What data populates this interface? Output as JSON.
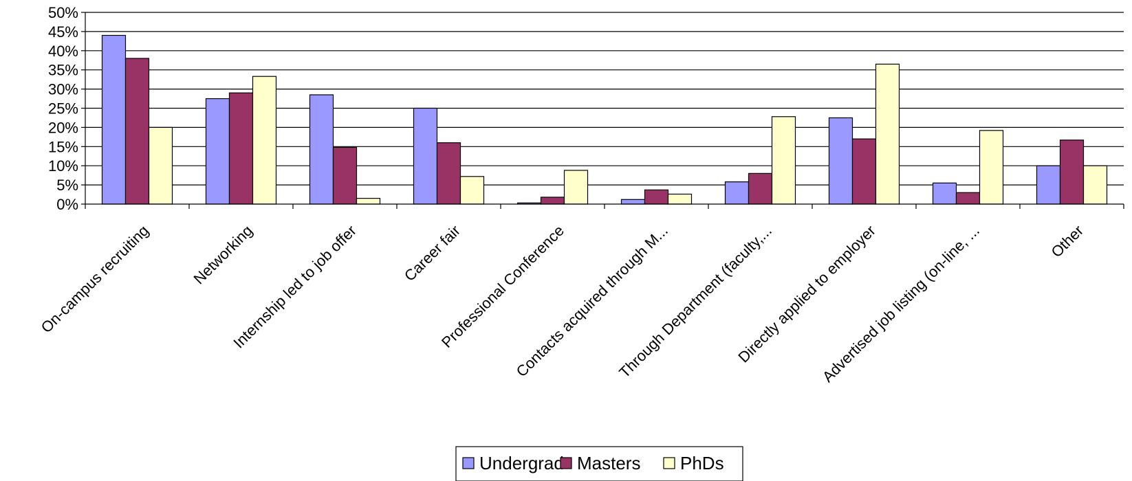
{
  "chart_data": {
    "type": "bar",
    "title": "",
    "xlabel": "",
    "ylabel": "",
    "ylim": [
      0,
      0.5
    ],
    "y_ticks": [
      "0%",
      "5%",
      "10%",
      "15%",
      "20%",
      "25%",
      "30%",
      "35%",
      "40%",
      "45%",
      "50%"
    ],
    "grid": true,
    "legend_position": "bottom",
    "categories": [
      "On-campus recruiting",
      "Networking",
      "Internship led to job offer",
      "Career fair",
      "Professional Conference",
      "Contacts acquired through M...",
      "Through Department (faculty,...",
      "Directly applied to employer",
      "Advertised job listing (on-line, ...",
      "Other"
    ],
    "series": [
      {
        "name": "Undergrad",
        "color": "#9999ff",
        "values": [
          0.44,
          0.275,
          0.285,
          0.25,
          0.003,
          0.012,
          0.058,
          0.225,
          0.055,
          0.1
        ]
      },
      {
        "name": "Masters",
        "color": "#993366",
        "values": [
          0.38,
          0.29,
          0.148,
          0.16,
          0.018,
          0.037,
          0.08,
          0.17,
          0.03,
          0.167
        ]
      },
      {
        "name": "PhDs",
        "color": "#ffffcc",
        "values": [
          0.2,
          0.333,
          0.015,
          0.072,
          0.088,
          0.026,
          0.228,
          0.365,
          0.192,
          0.1
        ]
      }
    ]
  }
}
